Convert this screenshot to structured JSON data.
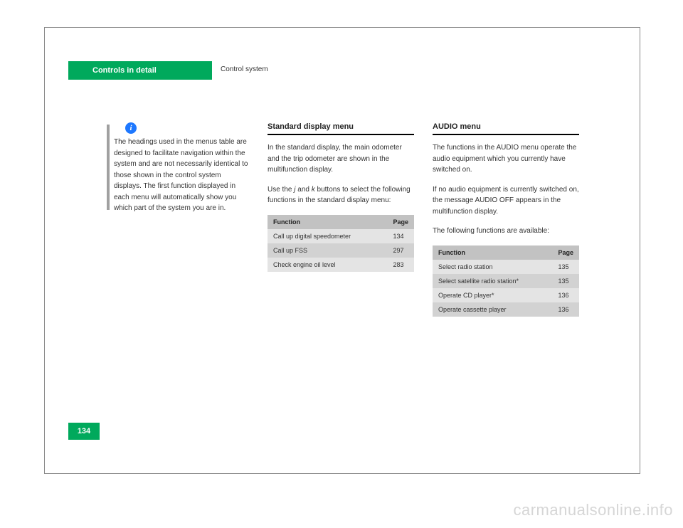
{
  "header": {
    "tab_label": "Controls in detail",
    "sub_label": "Control system"
  },
  "note": {
    "icon_text": "i",
    "text": "The headings used in the menus table are designed to facilitate navigation within the system and are not necessarily identical to those shown in the control system displays. The first function displayed in each menu will automatically show you which part of the system you are in."
  },
  "col2": {
    "title": "Standard display menu",
    "body_1": "In the standard display, the main odometer and the trip odometer are shown in the multifunction display.",
    "body_2_prefix": "Use the ",
    "body_2_italic1": "j",
    "body_2_mid": " and ",
    "body_2_italic2": "k",
    "body_2_suffix": " buttons to select the following functions in the standard display menu:",
    "table": {
      "headers": [
        "Function",
        "Page"
      ],
      "rows": [
        {
          "label": "Call up digital speedometer",
          "page": "134"
        },
        {
          "label": "Call up FSS",
          "page": "297"
        },
        {
          "label": "Check engine oil level",
          "page": "283"
        }
      ]
    }
  },
  "col3": {
    "title": "AUDIO menu",
    "body_1": "The functions in the AUDIO menu operate the audio equipment which you currently have switched on.",
    "body_2": "If no audio equipment is currently switched on, the message AUDIO OFF appears in the multifunction display.",
    "body_3": "The following functions are available:",
    "table": {
      "headers": [
        "Function",
        "Page"
      ],
      "rows": [
        {
          "label": "Select radio station",
          "page": "135"
        },
        {
          "label": "Select satellite radio station*",
          "page": "135"
        },
        {
          "label": "Operate CD player*",
          "page": "136"
        },
        {
          "label": "Operate cassette player",
          "page": "136"
        }
      ]
    }
  },
  "page_number": "134",
  "watermark": "carmanualsonline.info"
}
